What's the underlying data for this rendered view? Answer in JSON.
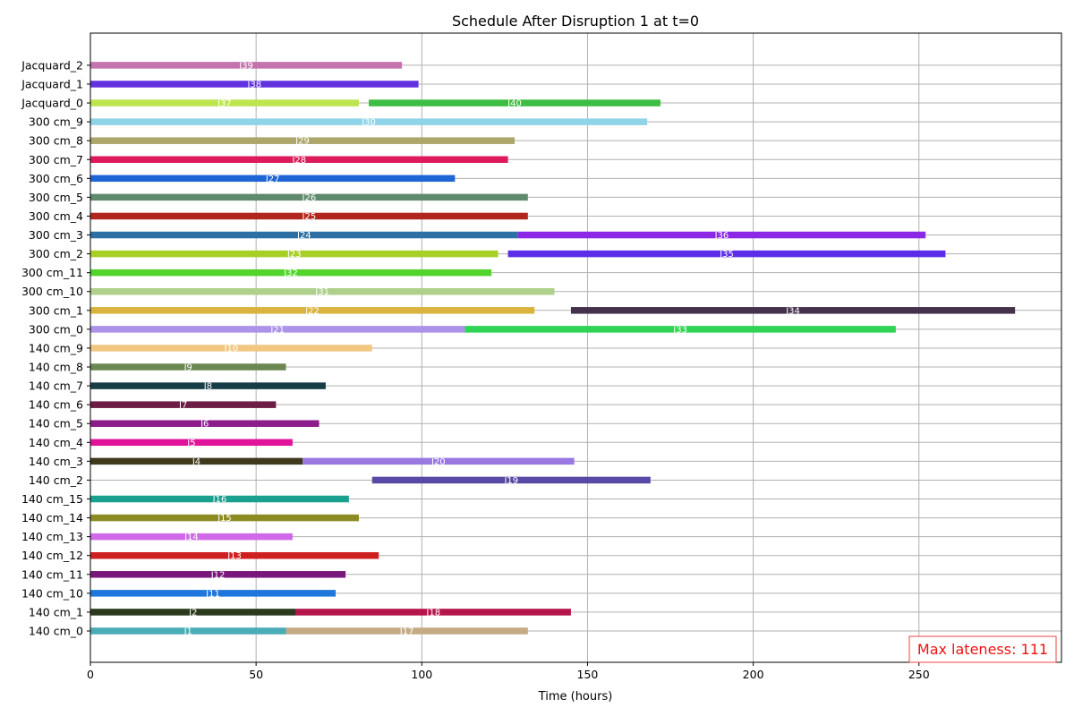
{
  "chart_data": {
    "type": "gantt",
    "title": "Schedule After Disruption 1 at t=0",
    "xlabel": "Time (hours)",
    "ylabel": "",
    "xlim": [
      0,
      293
    ],
    "x_ticks": [
      0,
      50,
      100,
      150,
      200,
      250
    ],
    "grid": true,
    "machines": [
      "140 cm_0",
      "140 cm_1",
      "140 cm_10",
      "140 cm_11",
      "140 cm_12",
      "140 cm_13",
      "140 cm_14",
      "140 cm_15",
      "140 cm_2",
      "140 cm_3",
      "140 cm_4",
      "140 cm_5",
      "140 cm_6",
      "140 cm_7",
      "140 cm_8",
      "140 cm_9",
      "300 cm_0",
      "300 cm_1",
      "300 cm_10",
      "300 cm_11",
      "300 cm_2",
      "300 cm_3",
      "300 cm_4",
      "300 cm_5",
      "300 cm_6",
      "300 cm_7",
      "300 cm_8",
      "300 cm_9",
      "Jacquard_0",
      "Jacquard_1",
      "Jacquard_2"
    ],
    "tasks": [
      {
        "machine": "140 cm_0",
        "label": "J1",
        "start": 0,
        "end": 59,
        "color": "#4aacb6"
      },
      {
        "machine": "140 cm_0",
        "label": "J17",
        "start": 59,
        "end": 132,
        "color": "#c5aa84"
      },
      {
        "machine": "140 cm_1",
        "label": "J2",
        "start": 0,
        "end": 62,
        "color": "#2b3a1c"
      },
      {
        "machine": "140 cm_1",
        "label": "J18",
        "start": 62,
        "end": 145,
        "color": "#b4154a"
      },
      {
        "machine": "140 cm_10",
        "label": "J11",
        "start": 0,
        "end": 74,
        "color": "#1f77dd"
      },
      {
        "machine": "140 cm_11",
        "label": "J12",
        "start": 0,
        "end": 77,
        "color": "#7a177c"
      },
      {
        "machine": "140 cm_12",
        "label": "J13",
        "start": 0,
        "end": 87,
        "color": "#cf2020"
      },
      {
        "machine": "140 cm_13",
        "label": "J14",
        "start": 0,
        "end": 61,
        "color": "#d069e8"
      },
      {
        "machine": "140 cm_14",
        "label": "J15",
        "start": 0,
        "end": 81,
        "color": "#8c8b22"
      },
      {
        "machine": "140 cm_15",
        "label": "J16",
        "start": 0,
        "end": 78,
        "color": "#19a08f"
      },
      {
        "machine": "140 cm_2",
        "label": "J19",
        "start": 85,
        "end": 169,
        "color": "#5849a4"
      },
      {
        "machine": "140 cm_3",
        "label": "J4",
        "start": 0,
        "end": 64,
        "color": "#3f3a1d"
      },
      {
        "machine": "140 cm_3",
        "label": "J20",
        "start": 64,
        "end": 146,
        "color": "#9a78e1"
      },
      {
        "machine": "140 cm_4",
        "label": "J5",
        "start": 0,
        "end": 61,
        "color": "#e0139a"
      },
      {
        "machine": "140 cm_5",
        "label": "J6",
        "start": 0,
        "end": 69,
        "color": "#8c1c8a"
      },
      {
        "machine": "140 cm_6",
        "label": "J7",
        "start": 0,
        "end": 56,
        "color": "#6d1d45"
      },
      {
        "machine": "140 cm_7",
        "label": "J8",
        "start": 0,
        "end": 71,
        "color": "#173d47"
      },
      {
        "machine": "140 cm_8",
        "label": "J9",
        "start": 0,
        "end": 59,
        "color": "#6b8752"
      },
      {
        "machine": "140 cm_9",
        "label": "J10",
        "start": 0,
        "end": 85,
        "color": "#f2c784"
      },
      {
        "machine": "300 cm_0",
        "label": "J21",
        "start": 0,
        "end": 113,
        "color": "#ac92e8"
      },
      {
        "machine": "300 cm_0",
        "label": "J33",
        "start": 113,
        "end": 243,
        "color": "#2fd455"
      },
      {
        "machine": "300 cm_1",
        "label": "J22",
        "start": 0,
        "end": 134,
        "color": "#d8b43e"
      },
      {
        "machine": "300 cm_1",
        "label": "J34",
        "start": 145,
        "end": 279,
        "color": "#44324d"
      },
      {
        "machine": "300 cm_10",
        "label": "J31",
        "start": 0,
        "end": 140,
        "color": "#aed08b"
      },
      {
        "machine": "300 cm_11",
        "label": "J32",
        "start": 0,
        "end": 121,
        "color": "#52d42b"
      },
      {
        "machine": "300 cm_2",
        "label": "J23",
        "start": 0,
        "end": 123,
        "color": "#a8cf26"
      },
      {
        "machine": "300 cm_2",
        "label": "J35",
        "start": 126,
        "end": 258,
        "color": "#5b2de8"
      },
      {
        "machine": "300 cm_3",
        "label": "J24",
        "start": 0,
        "end": 129,
        "color": "#2c6fa4"
      },
      {
        "machine": "300 cm_3",
        "label": "J36",
        "start": 129,
        "end": 252,
        "color": "#8a28e6"
      },
      {
        "machine": "300 cm_4",
        "label": "J25",
        "start": 0,
        "end": 132,
        "color": "#b1271d"
      },
      {
        "machine": "300 cm_5",
        "label": "J26",
        "start": 0,
        "end": 132,
        "color": "#5f8a6d"
      },
      {
        "machine": "300 cm_6",
        "label": "J27",
        "start": 0,
        "end": 110,
        "color": "#1e66d6"
      },
      {
        "machine": "300 cm_7",
        "label": "J28",
        "start": 0,
        "end": 126,
        "color": "#dd1a5a"
      },
      {
        "machine": "300 cm_8",
        "label": "J29",
        "start": 0,
        "end": 128,
        "color": "#aca66a"
      },
      {
        "machine": "300 cm_9",
        "label": "J30",
        "start": 0,
        "end": 168,
        "color": "#8fd4e8"
      },
      {
        "machine": "Jacquard_0",
        "label": "J37",
        "start": 0,
        "end": 81,
        "color": "#bde54e"
      },
      {
        "machine": "Jacquard_0",
        "label": "J40",
        "start": 84,
        "end": 172,
        "color": "#3dbd44"
      },
      {
        "machine": "Jacquard_1",
        "label": "J38",
        "start": 0,
        "end": 99,
        "color": "#6232e0"
      },
      {
        "machine": "Jacquard_2",
        "label": "J39",
        "start": 0,
        "end": 94,
        "color": "#c473ad"
      }
    ],
    "annotation": {
      "text": "Max lateness: 111",
      "color": "#ee1111",
      "position": "bottom-right"
    }
  }
}
